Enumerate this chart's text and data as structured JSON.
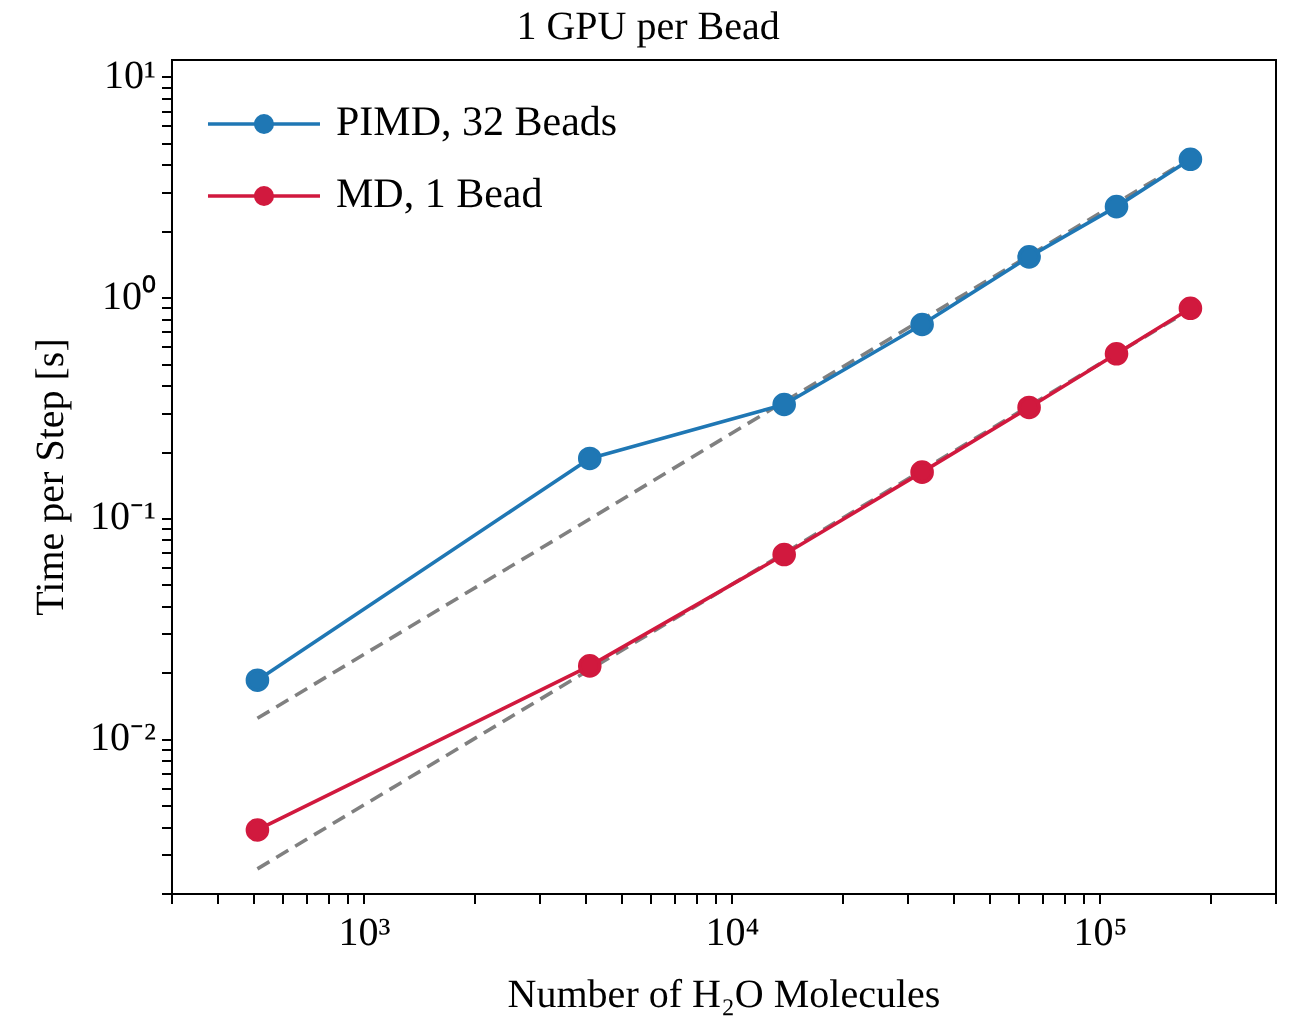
{
  "chart_data": {
    "type": "line",
    "title": "1 GPU per Bead",
    "xlabel": "Number of H₂O Molecules",
    "ylabel": "Time per Step [s]",
    "log": "xy",
    "xlim": [
      300,
      300000
    ],
    "ylim": [
      0.002,
      12
    ],
    "xticks": [
      {
        "value": 300,
        "label": null
      },
      {
        "value": 400,
        "label": null
      },
      {
        "value": 500,
        "label": null
      },
      {
        "value": 600,
        "label": null
      },
      {
        "value": 700,
        "label": null
      },
      {
        "value": 800,
        "label": null
      },
      {
        "value": 900,
        "label": null
      },
      {
        "value": 1000,
        "label": "10³"
      },
      {
        "value": 2000,
        "label": null
      },
      {
        "value": 3000,
        "label": null
      },
      {
        "value": 4000,
        "label": null
      },
      {
        "value": 5000,
        "label": null
      },
      {
        "value": 6000,
        "label": null
      },
      {
        "value": 7000,
        "label": null
      },
      {
        "value": 8000,
        "label": null
      },
      {
        "value": 9000,
        "label": null
      },
      {
        "value": 10000,
        "label": "10⁴"
      },
      {
        "value": 20000,
        "label": null
      },
      {
        "value": 30000,
        "label": null
      },
      {
        "value": 40000,
        "label": null
      },
      {
        "value": 50000,
        "label": null
      },
      {
        "value": 60000,
        "label": null
      },
      {
        "value": 70000,
        "label": null
      },
      {
        "value": 80000,
        "label": null
      },
      {
        "value": 90000,
        "label": null
      },
      {
        "value": 100000,
        "label": "10⁵"
      },
      {
        "value": 200000,
        "label": null
      },
      {
        "value": 300000,
        "label": null
      }
    ],
    "yticks": [
      {
        "value": 0.002,
        "label": null
      },
      {
        "value": 0.003,
        "label": null
      },
      {
        "value": 0.004,
        "label": null
      },
      {
        "value": 0.005,
        "label": null
      },
      {
        "value": 0.006,
        "label": null
      },
      {
        "value": 0.007,
        "label": null
      },
      {
        "value": 0.008,
        "label": null
      },
      {
        "value": 0.009,
        "label": null
      },
      {
        "value": 0.01,
        "label": "10⁻²"
      },
      {
        "value": 0.02,
        "label": null
      },
      {
        "value": 0.03,
        "label": null
      },
      {
        "value": 0.04,
        "label": null
      },
      {
        "value": 0.05,
        "label": null
      },
      {
        "value": 0.06,
        "label": null
      },
      {
        "value": 0.07,
        "label": null
      },
      {
        "value": 0.08,
        "label": null
      },
      {
        "value": 0.09,
        "label": null
      },
      {
        "value": 0.1,
        "label": "10⁻¹"
      },
      {
        "value": 0.2,
        "label": null
      },
      {
        "value": 0.3,
        "label": null
      },
      {
        "value": 0.4,
        "label": null
      },
      {
        "value": 0.5,
        "label": null
      },
      {
        "value": 0.6,
        "label": null
      },
      {
        "value": 0.7,
        "label": null
      },
      {
        "value": 0.8,
        "label": null
      },
      {
        "value": 0.9,
        "label": null
      },
      {
        "value": 1,
        "label": "10⁰"
      },
      {
        "value": 2,
        "label": null
      },
      {
        "value": 3,
        "label": null
      },
      {
        "value": 4,
        "label": null
      },
      {
        "value": 5,
        "label": null
      },
      {
        "value": 6,
        "label": null
      },
      {
        "value": 7,
        "label": null
      },
      {
        "value": 8,
        "label": null
      },
      {
        "value": 9,
        "label": null
      },
      {
        "value": 10,
        "label": "10¹"
      }
    ],
    "grid": false,
    "legend": "top left",
    "x": [
      512,
      4096,
      13824,
      32768,
      64000,
      110592,
      175616
    ],
    "series": [
      {
        "name": "PIMD, 32 Beads",
        "color": "#1f77b4",
        "marker": "circle",
        "line_style": "solid",
        "values": [
          0.0186,
          0.188,
          0.33,
          0.76,
          1.54,
          2.6,
          4.26
        ]
      },
      {
        "name": "MD, 1 Bead",
        "color": "#d1193e",
        "marker": "circle",
        "line_style": "solid",
        "values": [
          0.0039,
          0.0216,
          0.069,
          0.163,
          0.32,
          0.56,
          0.9
        ]
      },
      {
        "color": "#808080",
        "marker": "none",
        "line_style": "dashed",
        "values": [
          0.0125,
          0.1,
          0.34,
          0.8,
          1.56,
          2.7,
          4.29
        ]
      },
      {
        "color": "#808080",
        "marker": "none",
        "line_style": "dashed",
        "values": [
          0.0026,
          0.0208,
          0.07,
          0.166,
          0.325,
          0.56,
          0.89
        ]
      }
    ]
  }
}
